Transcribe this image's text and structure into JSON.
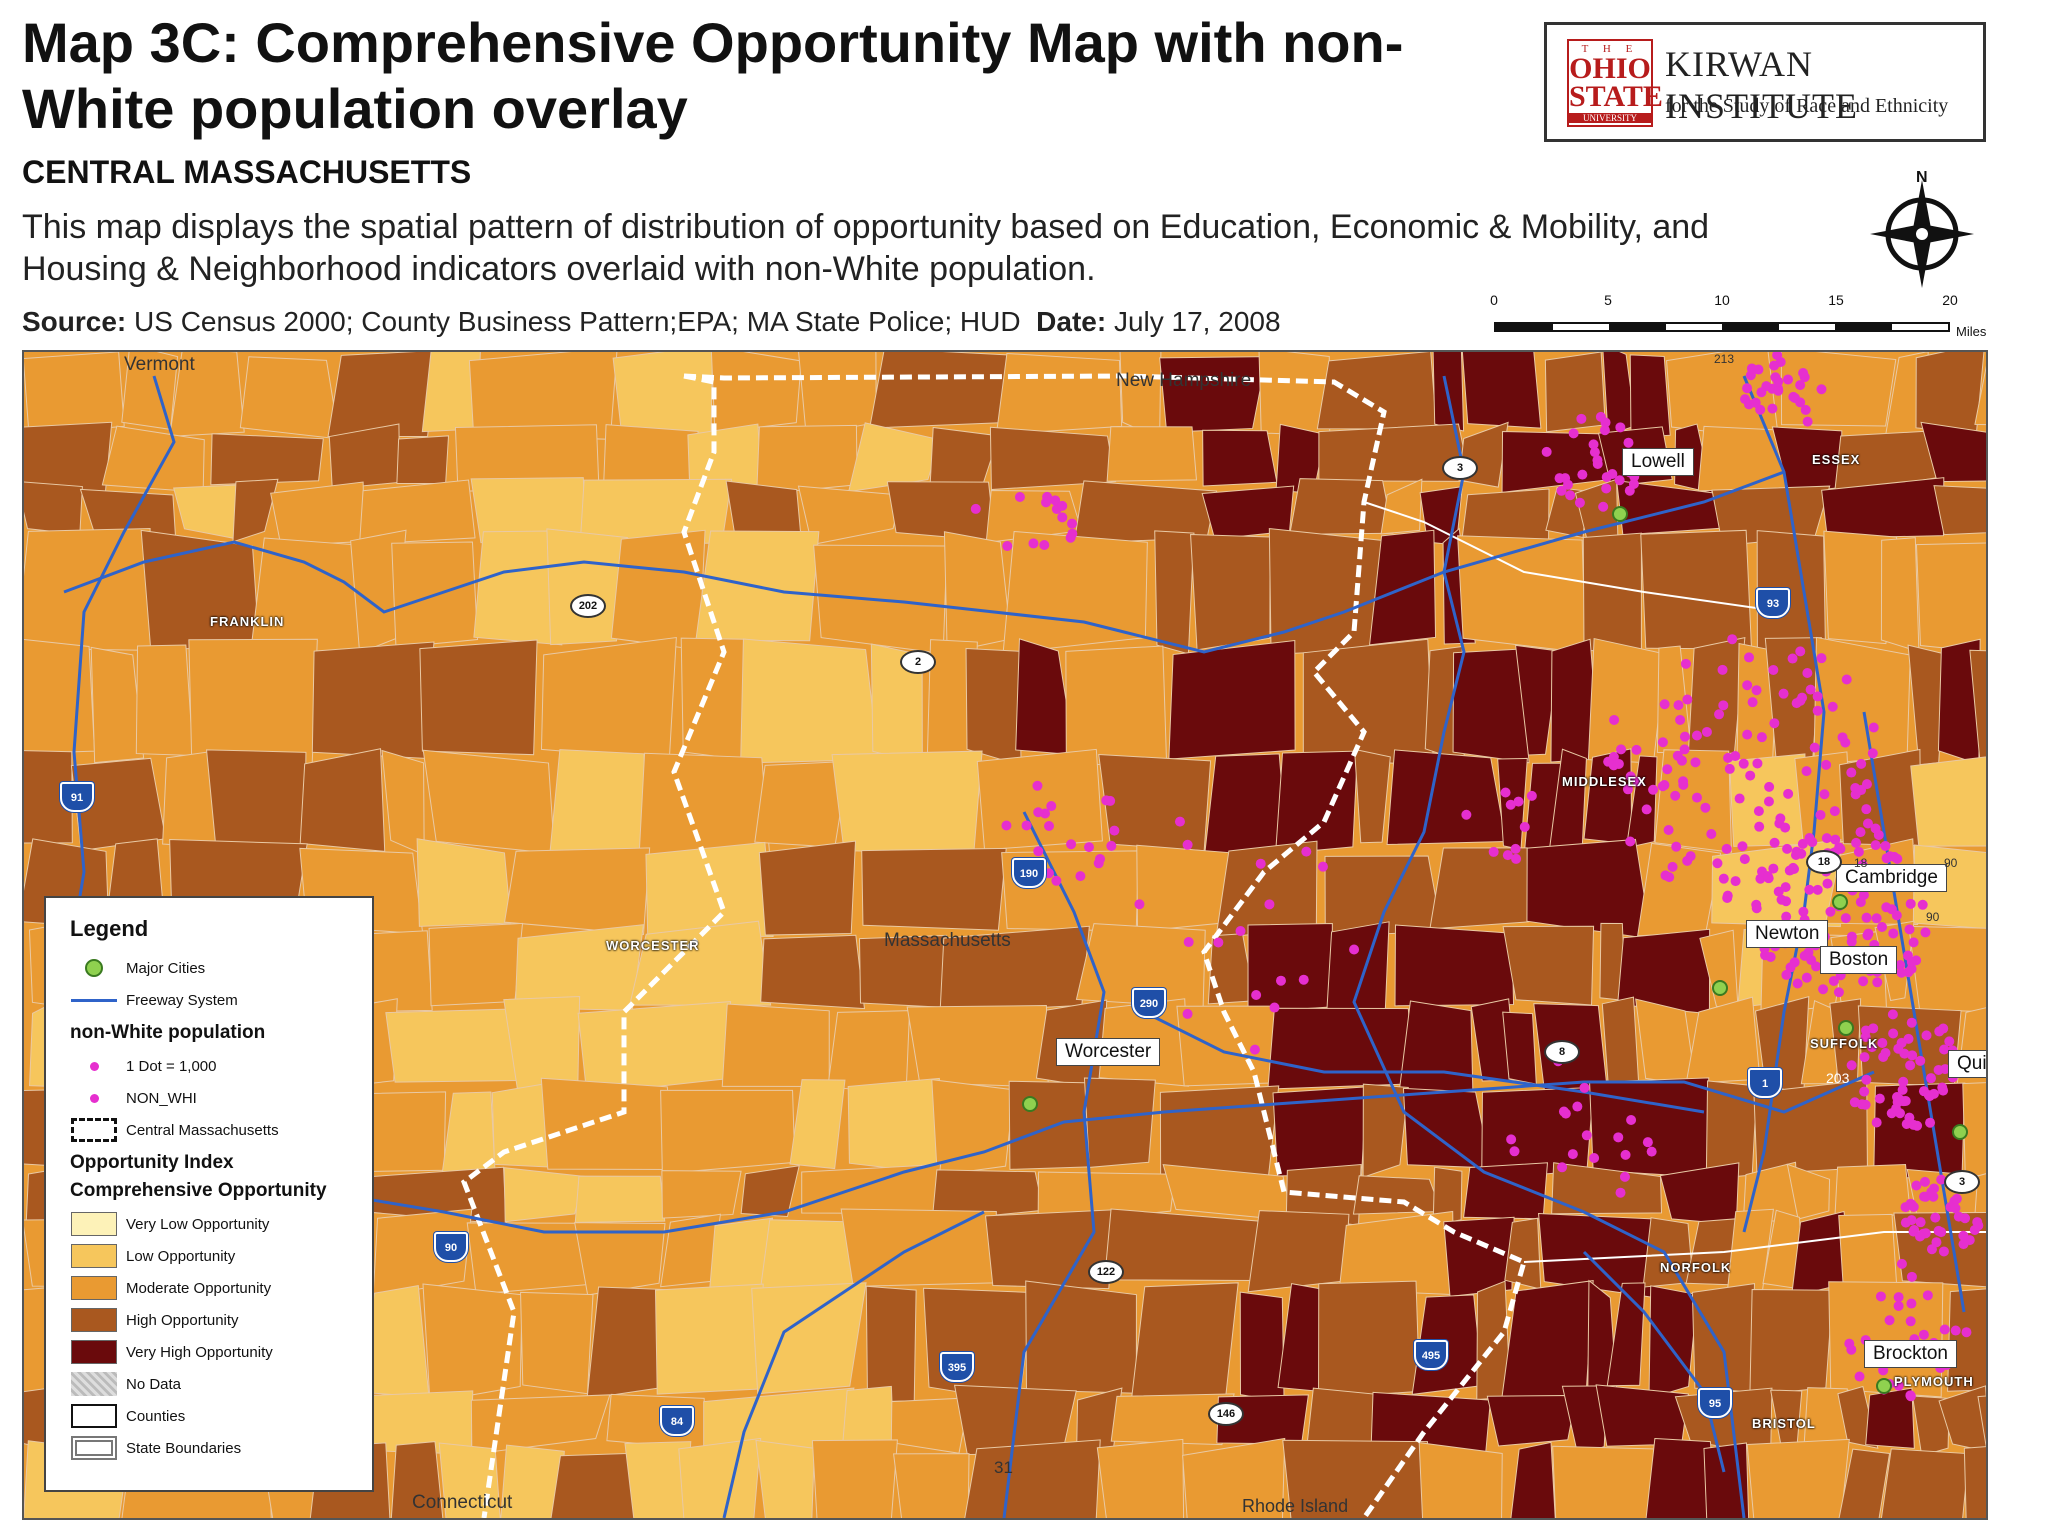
{
  "header": {
    "title": "Map 3C: Comprehensive Opportunity Map with non-White population overlay",
    "region": "CENTRAL MASSACHUSETTS",
    "description": "This map displays the spatial pattern of distribution of opportunity based on Education, Economic & Mobility, and Housing & Neighborhood indicators overlaid with non-White population.",
    "source_label": "Source:",
    "source_text": "US Census 2000; County Business Pattern;EPA; MA State Police; HUD",
    "date_label": "Date:",
    "date_text": "July 17, 2008"
  },
  "logo": {
    "badge_the": "T H E",
    "badge_ohio": "OHIO",
    "badge_state": "STATE",
    "badge_university": "UNIVERSITY",
    "name": "KIRWAN INSTITUTE",
    "tagline": "for the Study of Race and Ethnicity"
  },
  "north_arrow": {
    "label": "N"
  },
  "scale": {
    "ticks": [
      "0",
      "5",
      "10",
      "15",
      "20"
    ],
    "unit": "Miles"
  },
  "map": {
    "state_labels": [
      "Vermont",
      "New Hampshire",
      "Massachusetts",
      "Connecticut",
      "Rhode Island"
    ],
    "county_labels": [
      "FRANKLIN",
      "WORCESTER",
      "MIDDLESEX",
      "ESSEX",
      "SUFFOLK",
      "NORFOLK",
      "PLYMOUTH",
      "BRISTOL"
    ],
    "cities": [
      "Lowell",
      "Worcester",
      "Cambridge",
      "Newton",
      "Boston",
      "Brockton",
      "Quin"
    ],
    "highways": [
      "91",
      "190",
      "290",
      "90",
      "84",
      "395",
      "495",
      "93",
      "95",
      "1"
    ],
    "routes": [
      "202",
      "2",
      "3",
      "8",
      "122",
      "146",
      "18",
      "3"
    ],
    "small_labels": [
      "31",
      "203",
      "18",
      "90",
      "90",
      "213"
    ],
    "colors": {
      "very_low": "#fdf2b8",
      "low": "#f6c65c",
      "moderate": "#e99a32",
      "high": "#a9581f",
      "very_high": "#6a0a0c",
      "no_data": "#cccccc",
      "freeway": "#2f63c9",
      "population_dot": "#e62fcf",
      "major_city": "#8fd14f"
    }
  },
  "legend": {
    "title": "Legend",
    "major_cities": "Major Cities",
    "freeway": "Freeway System",
    "population_heading": "non-White population",
    "dot_density": "1 Dot = 1,000",
    "non_whi": "NON_WHI",
    "central_ma": "Central Massachusetts",
    "index_heading": "Opportunity Index",
    "index_subheading": "Comprehensive Opportunity",
    "classes": [
      "Very Low Opportunity",
      "Low Opportunity",
      "Moderate Opportunity",
      "High Opportunity",
      "Very High Opportunity"
    ],
    "no_data": "No Data",
    "counties": "Counties",
    "state_boundaries": "State Boundaries"
  }
}
